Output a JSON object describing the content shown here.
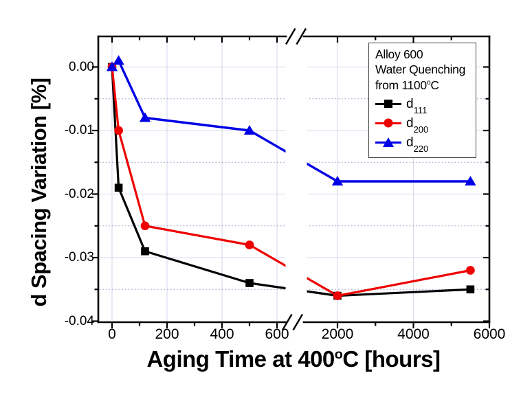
{
  "chart_data": {
    "type": "line",
    "title": "",
    "x_axis": {
      "title_main": "Aging Time at 400",
      "title_sup": "o",
      "title_end": "C [hours]",
      "unit": "hours",
      "has_break": true,
      "break_between": [
        600,
        2000
      ],
      "ticks": [
        {
          "t": 0,
          "label": "0",
          "grid": true
        },
        {
          "t": 100
        },
        {
          "t": 200,
          "label": "200",
          "grid": true
        },
        {
          "t": 300
        },
        {
          "t": 400,
          "label": "400",
          "grid": true
        },
        {
          "t": 500
        },
        {
          "t": 600,
          "label": "600",
          "grid": true
        },
        {
          "t": 2000,
          "label": "2000",
          "grid": true
        },
        {
          "t": 3000
        },
        {
          "t": 4000,
          "label": "4000",
          "grid": true
        },
        {
          "t": 5000
        },
        {
          "t": 6000,
          "label": "6000",
          "grid": false
        }
      ]
    },
    "y_axis": {
      "title": "d Spacing Variation [%]",
      "range": [
        -0.04,
        0.005
      ],
      "ticks": [
        {
          "v": 0,
          "label": "0.00",
          "grid": true
        },
        {
          "v": -0.005
        },
        {
          "v": -0.01,
          "label": "-0.01",
          "grid": true
        },
        {
          "v": -0.015
        },
        {
          "v": -0.02,
          "label": "-0.02",
          "grid": true
        },
        {
          "v": -0.025
        },
        {
          "v": -0.03,
          "label": "-0.03",
          "grid": true
        },
        {
          "v": -0.035
        },
        {
          "v": -0.04,
          "label": "-0.04",
          "grid": false
        }
      ]
    },
    "series": [
      {
        "name": "d111",
        "label_base": "d",
        "label_sub": "111",
        "color": "#000000",
        "marker": "square",
        "line_width": 3.2,
        "x": [
          0,
          24,
          120,
          500,
          2000,
          5500
        ],
        "y": [
          0.0,
          -0.019,
          -0.029,
          -0.034,
          -0.036,
          -0.035
        ]
      },
      {
        "name": "d200",
        "label_base": "d",
        "label_sub": "200",
        "color": "#ee0000",
        "marker": "circle",
        "line_width": 3.2,
        "x": [
          0,
          24,
          120,
          500,
          2000,
          5500
        ],
        "y": [
          0.0,
          -0.01,
          -0.025,
          -0.028,
          -0.036,
          -0.032
        ]
      },
      {
        "name": "d220",
        "label_base": "d",
        "label_sub": "220",
        "color": "#0000e6",
        "marker": "triangle",
        "line_width": 3.4,
        "x": [
          0,
          24,
          120,
          500,
          2000,
          5500
        ],
        "y": [
          0.0,
          0.001,
          -0.008,
          -0.01,
          -0.018,
          -0.018
        ]
      }
    ],
    "legend": {
      "position": "top-right",
      "line1": "Alloy 600",
      "line2": "Water Quenching",
      "line3_main": "from 1100",
      "line3_sup": "o",
      "line3_end": "C"
    },
    "style": {
      "background": "#ffffff",
      "axis_color": "#000000",
      "grid_major_color": "#dfe1f3",
      "grid_major_v_color": "#d8dbef",
      "grid_minor_color": "#99a1cc"
    }
  }
}
